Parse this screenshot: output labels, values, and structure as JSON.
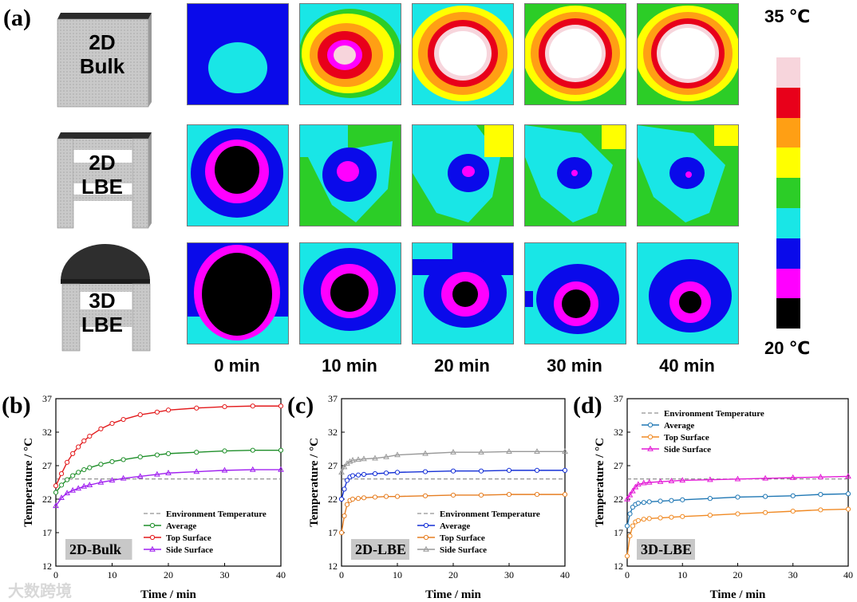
{
  "panel_a": {
    "letter": "(a)",
    "models": [
      {
        "line1": "2D",
        "line2": "Bulk"
      },
      {
        "line1": "2D",
        "line2": "LBE"
      },
      {
        "line1": "3D",
        "line2": "LBE"
      }
    ],
    "time_labels": [
      "0 min",
      "10 min",
      "20 min",
      "30 min",
      "40 min"
    ],
    "colorbar": {
      "max_label": "35 ℃",
      "min_label": "20 ℃",
      "colors": [
        "#f7d5dc",
        "#e8001a",
        "#ff9f14",
        "#ffff00",
        "#2ccd27",
        "#19e6e6",
        "#0a0aea",
        "#ff00ff",
        "#000000"
      ]
    }
  },
  "watermark": "大数跨境",
  "chart_data": [
    {
      "type": "line",
      "panel": "(b)",
      "tag": "2D-Bulk",
      "xlabel": "Time / min",
      "ylabel": "Temperature / °C",
      "xlim": [
        0,
        40
      ],
      "ylim": [
        12,
        37
      ],
      "xticks": [
        0,
        10,
        20,
        30,
        40
      ],
      "yticks": [
        12,
        17,
        22,
        27,
        32,
        37
      ],
      "env_label": "Environment Temperature",
      "env_value": 25,
      "series": [
        {
          "name": "Average",
          "color": "#1f8f2a",
          "marker": "circle",
          "x": [
            0,
            1,
            2,
            3,
            4,
            5,
            6,
            8,
            10,
            12,
            15,
            18,
            20,
            25,
            30,
            35,
            40
          ],
          "y": [
            23,
            24.1,
            24.9,
            25.5,
            26.0,
            26.4,
            26.7,
            27.2,
            27.6,
            27.9,
            28.3,
            28.6,
            28.8,
            29.0,
            29.2,
            29.3,
            29.3
          ]
        },
        {
          "name": "Top Surface",
          "color": "#e31a1c",
          "marker": "circle",
          "x": [
            0,
            1,
            2,
            3,
            4,
            5,
            6,
            8,
            10,
            12,
            15,
            18,
            20,
            25,
            30,
            35,
            40
          ],
          "y": [
            24,
            25.8,
            27.5,
            28.8,
            29.8,
            30.7,
            31.4,
            32.5,
            33.3,
            33.9,
            34.6,
            35.0,
            35.3,
            35.6,
            35.8,
            35.9,
            35.9
          ]
        },
        {
          "name": "Side Surface",
          "color": "#a020f0",
          "marker": "triangle",
          "x": [
            0,
            1,
            2,
            3,
            4,
            5,
            6,
            8,
            10,
            12,
            15,
            18,
            20,
            25,
            30,
            35,
            40
          ],
          "y": [
            21,
            22.2,
            22.9,
            23.3,
            23.6,
            23.9,
            24.1,
            24.5,
            24.8,
            25.1,
            25.4,
            25.7,
            25.9,
            26.1,
            26.3,
            26.4,
            26.4
          ]
        }
      ]
    },
    {
      "type": "line",
      "panel": "(c)",
      "tag": "2D-LBE",
      "xlabel": "Time / min",
      "ylabel": "Temperature / °C",
      "xlim": [
        0,
        40
      ],
      "ylim": [
        12,
        37
      ],
      "xticks": [
        0,
        10,
        20,
        30,
        40
      ],
      "yticks": [
        12,
        17,
        22,
        27,
        32,
        37
      ],
      "env_label": "Environment Temperature",
      "env_value": 25,
      "series": [
        {
          "name": "Average",
          "color": "#1530d6",
          "marker": "circle",
          "x": [
            0,
            0.5,
            1,
            1.5,
            2,
            3,
            4,
            6,
            8,
            10,
            15,
            20,
            25,
            30,
            35,
            40
          ],
          "y": [
            22,
            23.5,
            24.8,
            25.3,
            25.5,
            25.6,
            25.7,
            25.8,
            25.9,
            26.0,
            26.1,
            26.2,
            26.2,
            26.3,
            26.3,
            26.3
          ]
        },
        {
          "name": "Top Surface",
          "color": "#e67e22",
          "marker": "circle",
          "x": [
            0,
            0.5,
            1,
            1.5,
            2,
            3,
            4,
            6,
            8,
            10,
            15,
            20,
            25,
            30,
            35,
            40
          ],
          "y": [
            17,
            19.5,
            21.2,
            21.8,
            22.0,
            22.1,
            22.2,
            22.3,
            22.4,
            22.4,
            22.5,
            22.6,
            22.6,
            22.7,
            22.7,
            22.7
          ]
        },
        {
          "name": "Side Surface",
          "color": "#999999",
          "marker": "triangle",
          "x": [
            0,
            0.5,
            1,
            1.5,
            2,
            3,
            4,
            6,
            8,
            10,
            15,
            20,
            25,
            30,
            35,
            40
          ],
          "y": [
            26,
            26.8,
            27.3,
            27.6,
            27.8,
            27.9,
            28.0,
            28.1,
            28.3,
            28.6,
            28.8,
            29.0,
            29.0,
            29.1,
            29.1,
            29.1
          ]
        }
      ]
    },
    {
      "type": "line",
      "panel": "(d)",
      "tag": "3D-LBE",
      "xlabel": "Time / min",
      "ylabel": "Temperature / °C",
      "xlim": [
        0,
        40
      ],
      "ylim": [
        12,
        37
      ],
      "xticks": [
        0,
        10,
        20,
        30,
        40
      ],
      "yticks": [
        12,
        17,
        22,
        27,
        32,
        37
      ],
      "env_label": "Environment Temperature",
      "env_value": 25,
      "series": [
        {
          "name": "Average",
          "color": "#1f77b4",
          "marker": "circle",
          "x": [
            0,
            0.5,
            1,
            1.5,
            2,
            3,
            4,
            6,
            8,
            10,
            15,
            20,
            25,
            30,
            35,
            40
          ],
          "y": [
            18,
            19.8,
            20.8,
            21.2,
            21.4,
            21.5,
            21.6,
            21.7,
            21.8,
            21.9,
            22.1,
            22.3,
            22.4,
            22.5,
            22.7,
            22.8
          ]
        },
        {
          "name": "Top Surface",
          "color": "#f08a24",
          "marker": "circle",
          "x": [
            0,
            0.5,
            1,
            1.5,
            2,
            3,
            4,
            6,
            8,
            10,
            15,
            20,
            25,
            30,
            35,
            40
          ],
          "y": [
            13.5,
            16.5,
            18.0,
            18.6,
            18.8,
            19.0,
            19.1,
            19.2,
            19.3,
            19.4,
            19.6,
            19.8,
            20.0,
            20.2,
            20.4,
            20.5
          ]
        },
        {
          "name": "Side Surface",
          "color": "#e31ad6",
          "marker": "triangle",
          "x": [
            0,
            0.5,
            1,
            1.5,
            2,
            3,
            4,
            6,
            8,
            10,
            15,
            20,
            25,
            30,
            35,
            40
          ],
          "y": [
            22,
            22.6,
            23.2,
            23.8,
            24.2,
            24.4,
            24.5,
            24.6,
            24.7,
            24.8,
            24.9,
            25.0,
            25.1,
            25.2,
            25.3,
            25.4
          ]
        }
      ]
    }
  ]
}
